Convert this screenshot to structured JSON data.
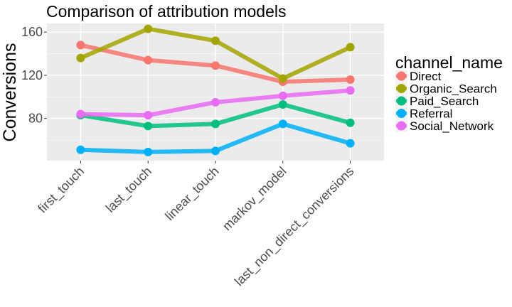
{
  "chart_data": {
    "type": "line",
    "title": "Comparison of attribution models",
    "xlabel": "",
    "ylabel": "Conversions",
    "categories": [
      "first_touch",
      "last_touch",
      "linear_touch",
      "markov_model",
      "last_non_direct_conversions"
    ],
    "ylim": [
      41,
      168
    ],
    "yticks": [
      80,
      120,
      160
    ],
    "grid": true,
    "legend": {
      "title": "channel_name",
      "position": "right"
    },
    "series": [
      {
        "name": "Direct",
        "color": "#F8766D",
        "values": [
          148,
          134,
          129,
          114,
          116
        ]
      },
      {
        "name": "Organic_Search",
        "color": "#A3A500",
        "values": [
          136,
          163,
          152,
          117,
          146
        ]
      },
      {
        "name": "Paid_Search",
        "color": "#00BF7D",
        "values": [
          83,
          73,
          75,
          93,
          76
        ]
      },
      {
        "name": "Referral",
        "color": "#00B0F6",
        "values": [
          51,
          49,
          50,
          75,
          57
        ]
      },
      {
        "name": "Social_Network",
        "color": "#E76BF3",
        "values": [
          84,
          83,
          95,
          101,
          106
        ]
      }
    ]
  }
}
